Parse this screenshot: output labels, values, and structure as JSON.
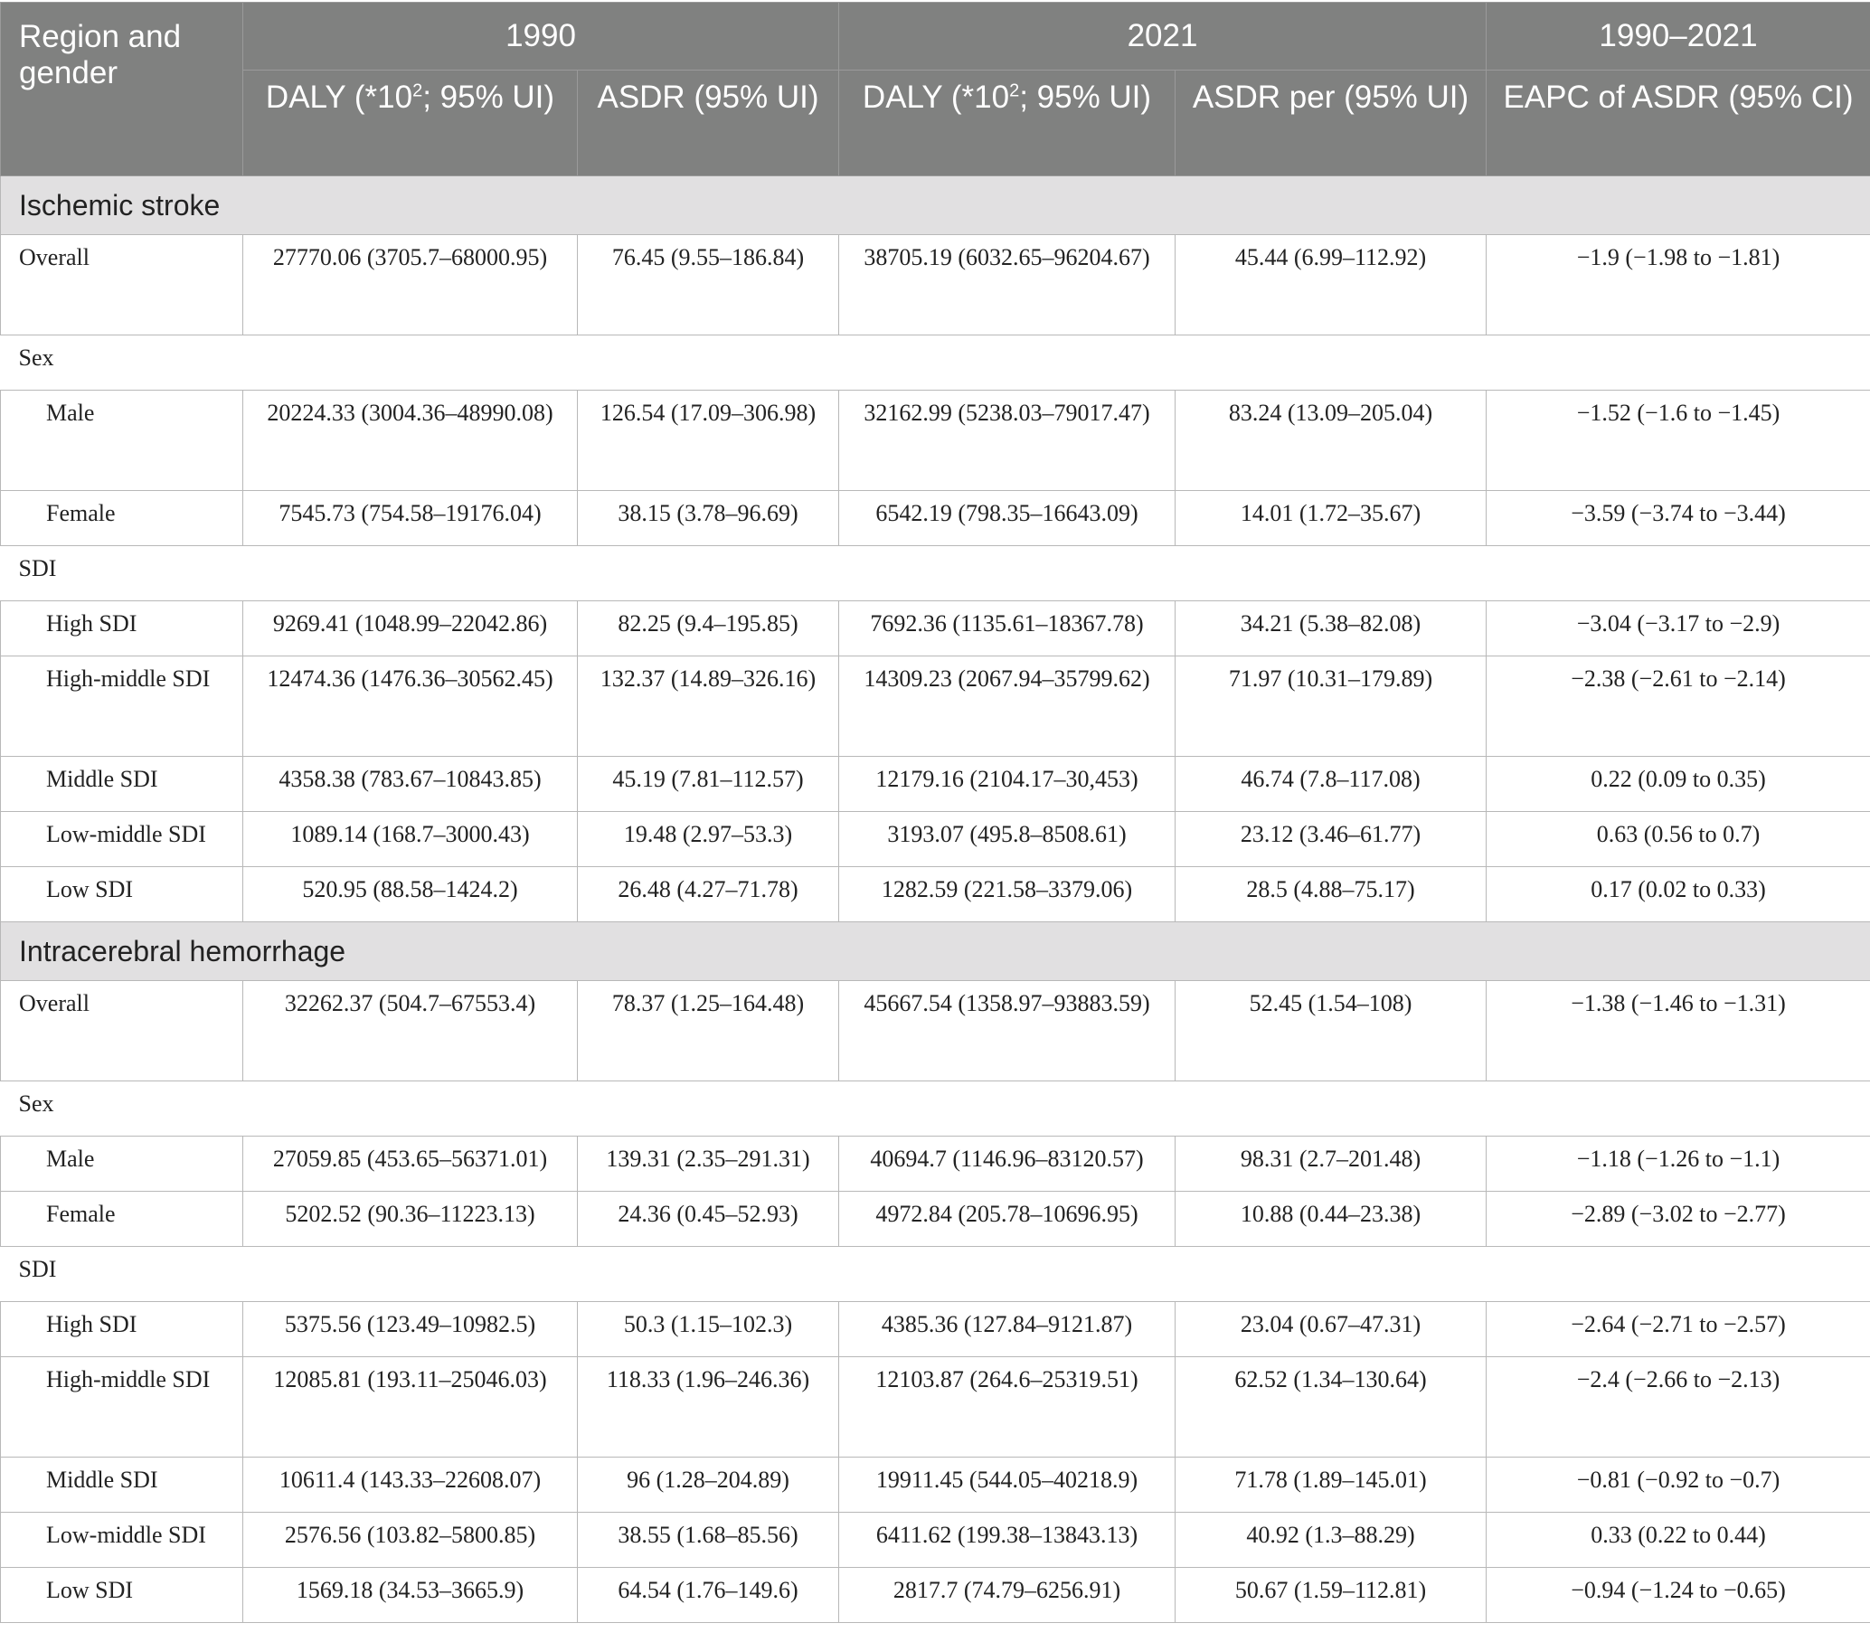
{
  "header": {
    "region_label": "Region and gender",
    "years": [
      "1990",
      "2021",
      "1990–2021"
    ],
    "columns": {
      "daly_1990": {
        "prefix": "DALY (*10",
        "sup": "2",
        "suffix": "; 95% UI)"
      },
      "asdr_1990": "ASDR (95% UI)",
      "daly_2021": {
        "prefix": "DALY (*10",
        "sup": "2",
        "suffix": "; 95% UI)"
      },
      "asdr_2021": "ASDR per (95% UI)",
      "eapc": "EAPC of ASDR (95% CI)"
    }
  },
  "sections": [
    {
      "title": "Ischemic stroke",
      "overall": {
        "label": "Overall",
        "values": [
          "27770.06 (3705.7–68000.95)",
          "76.45 (9.55–186.84)",
          "38705.19 (6032.65–96204.67)",
          "45.44 (6.99–112.92)",
          "−1.9 (−1.98 to −1.81)"
        ]
      },
      "sex_label": "Sex",
      "sex": [
        {
          "label": "Male",
          "values": [
            "20224.33 (3004.36–48990.08)",
            "126.54 (17.09–306.98)",
            "32162.99 (5238.03–79017.47)",
            "83.24 (13.09–205.04)",
            "−1.52 (−1.6 to −1.45)"
          ]
        },
        {
          "label": "Female",
          "values": [
            "7545.73 (754.58–19176.04)",
            "38.15 (3.78–96.69)",
            "6542.19 (798.35–16643.09)",
            "14.01 (1.72–35.67)",
            "−3.59 (−3.74 to −3.44)"
          ]
        }
      ],
      "sdi_label": "SDI",
      "sdi": [
        {
          "label": "High SDI",
          "values": [
            "9269.41 (1048.99–22042.86)",
            "82.25 (9.4–195.85)",
            "7692.36 (1135.61–18367.78)",
            "34.21 (5.38–82.08)",
            "−3.04 (−3.17 to −2.9)"
          ]
        },
        {
          "label": "High-middle SDI",
          "values": [
            "12474.36 (1476.36–30562.45)",
            "132.37 (14.89–326.16)",
            "14309.23 (2067.94–35799.62)",
            "71.97 (10.31–179.89)",
            "−2.38 (−2.61 to −2.14)"
          ]
        },
        {
          "label": "Middle SDI",
          "values": [
            "4358.38 (783.67–10843.85)",
            "45.19 (7.81–112.57)",
            "12179.16 (2104.17–30,453)",
            "46.74 (7.8–117.08)",
            "0.22 (0.09 to 0.35)"
          ]
        },
        {
          "label": "Low-middle SDI",
          "values": [
            "1089.14 (168.7–3000.43)",
            "19.48 (2.97–53.3)",
            "3193.07 (495.8–8508.61)",
            "23.12 (3.46–61.77)",
            "0.63 (0.56 to 0.7)"
          ]
        },
        {
          "label": "Low SDI",
          "values": [
            "520.95 (88.58–1424.2)",
            "26.48 (4.27–71.78)",
            "1282.59 (221.58–3379.06)",
            "28.5 (4.88–75.17)",
            "0.17 (0.02 to 0.33)"
          ]
        }
      ]
    },
    {
      "title": "Intracerebral hemorrhage",
      "overall": {
        "label": "Overall",
        "values": [
          "32262.37 (504.7–67553.4)",
          "78.37 (1.25–164.48)",
          "45667.54 (1358.97–93883.59)",
          "52.45 (1.54–108)",
          "−1.38 (−1.46 to −1.31)"
        ]
      },
      "sex_label": "Sex",
      "sex": [
        {
          "label": "Male",
          "values": [
            "27059.85 (453.65–56371.01)",
            "139.31 (2.35–291.31)",
            "40694.7 (1146.96–83120.57)",
            "98.31 (2.7–201.48)",
            "−1.18 (−1.26 to −1.1)"
          ]
        },
        {
          "label": "Female",
          "values": [
            "5202.52 (90.36–11223.13)",
            "24.36 (0.45–52.93)",
            "4972.84 (205.78–10696.95)",
            "10.88 (0.44–23.38)",
            "−2.89 (−3.02 to −2.77)"
          ]
        }
      ],
      "sdi_label": "SDI",
      "sdi": [
        {
          "label": "High SDI",
          "values": [
            "5375.56 (123.49–10982.5)",
            "50.3 (1.15–102.3)",
            "4385.36 (127.84–9121.87)",
            "23.04 (0.67–47.31)",
            "−2.64 (−2.71 to −2.57)"
          ]
        },
        {
          "label": "High-middle SDI",
          "values": [
            "12085.81 (193.11–25046.03)",
            "118.33 (1.96–246.36)",
            "12103.87 (264.6–25319.51)",
            "62.52 (1.34–130.64)",
            "−2.4 (−2.66 to −2.13)"
          ]
        },
        {
          "label": "Middle SDI",
          "values": [
            "10611.4 (143.33–22608.07)",
            "96 (1.28–204.89)",
            "19911.45 (544.05–40218.9)",
            "71.78 (1.89–145.01)",
            "−0.81 (−0.92 to −0.7)"
          ]
        },
        {
          "label": "Low-middle SDI",
          "values": [
            "2576.56 (103.82–5800.85)",
            "38.55 (1.68–85.56)",
            "6411.62 (199.38–13843.13)",
            "40.92 (1.3–88.29)",
            "0.33 (0.22 to 0.44)"
          ]
        },
        {
          "label": "Low SDI",
          "values": [
            "1569.18 (34.53–3665.9)",
            "64.54 (1.76–149.6)",
            "2817.7 (74.79–6256.91)",
            "50.67 (1.59–112.81)",
            "−0.94 (−1.24 to −0.65)"
          ]
        }
      ]
    }
  ]
}
